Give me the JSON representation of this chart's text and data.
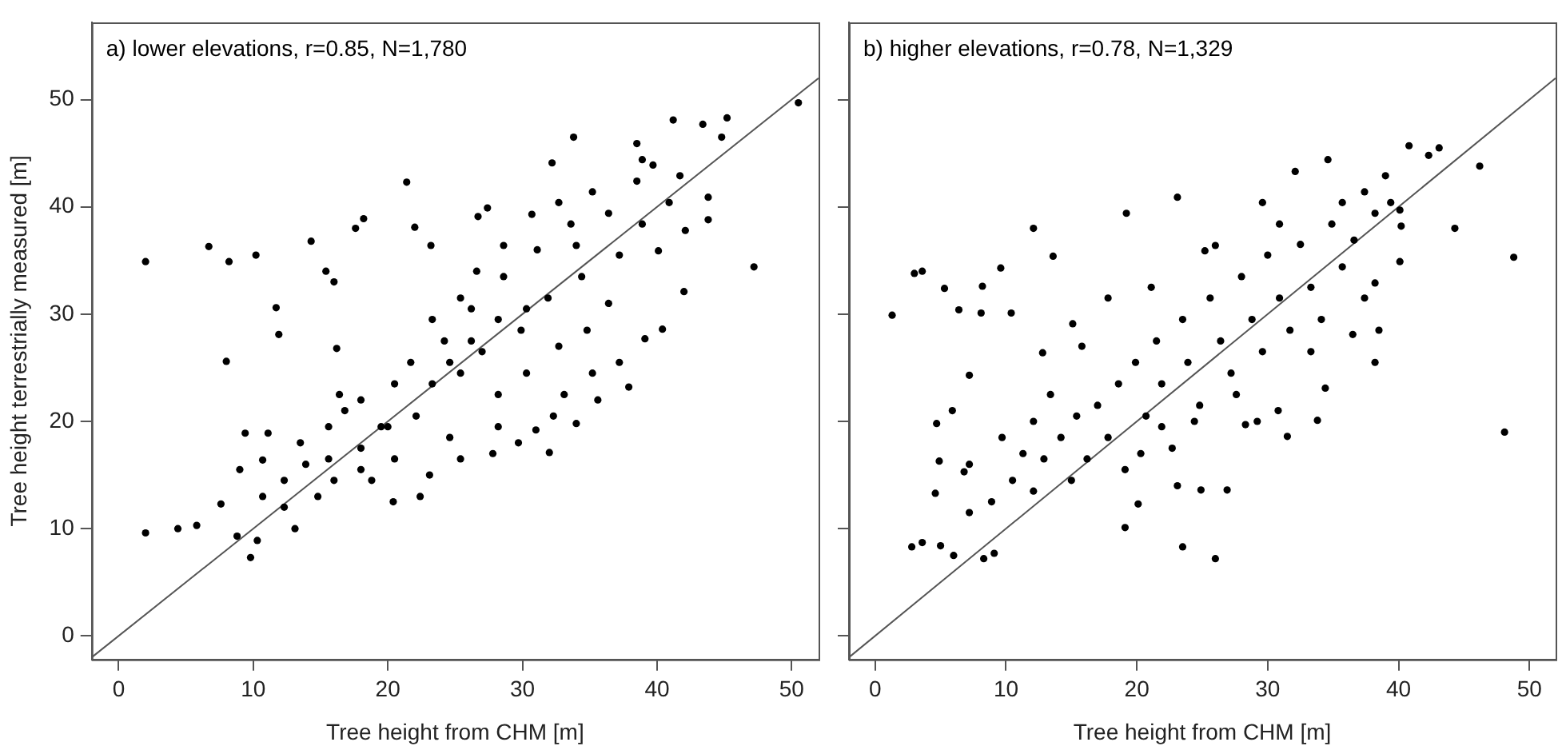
{
  "chart_data": [
    {
      "type": "scatter",
      "annotations": [
        "a) lower elevations, r=0.85, N=1,780"
      ],
      "xlabel": "Tree height from CHM [m]",
      "ylabel": "Tree height terrestrially measured [m]",
      "xlim": [
        -2,
        52
      ],
      "ylim": [
        -2.2,
        57.2
      ],
      "xticks": [
        0,
        10,
        20,
        30,
        40,
        50
      ],
      "yticks": [
        0,
        10,
        20,
        30,
        40,
        50
      ],
      "series": [
        {
          "type": "scatter",
          "marker": "circle",
          "color": "#000000",
          "x": [
            2.0,
            2.0,
            4.4,
            5.8,
            6.7,
            8.2,
            8.0,
            10.2,
            11.7,
            11.9,
            14.3,
            15.4,
            16.0,
            16.2,
            17.6,
            18.2,
            21.4,
            22.0,
            23.2,
            33.8,
            32.2,
            50.5,
            47.2,
            45.2,
            41.2,
            37.9,
            32.0,
            27.8,
            22.4,
            20.4,
            13.1,
            9.8,
            10.3,
            8.8,
            7.6,
            34.0,
            42.0,
            40.4,
            39.1,
            43.8,
            43.8,
            44.8,
            43.4,
            42.1,
            30.7,
            27.4,
            26.7,
            29.7,
            31.0,
            9.4,
            10.7,
            11.1,
            12.3,
            13.9,
            15.6,
            16.8,
            18.0,
            18.8,
            19.5,
            20.5,
            21.7,
            22.1,
            23.3,
            24.2,
            24.6,
            25.4,
            26.2,
            27.0,
            28.2,
            28.6,
            29.9,
            30.3,
            31.1,
            31.9,
            32.7,
            33.6,
            34.4,
            34.8,
            35.2,
            36.4,
            37.2,
            36.4,
            38.5,
            38.9,
            39.7,
            40.1,
            40.9,
            41.7,
            37.2,
            35.6,
            33.1,
            32.3,
            28.2,
            25.4,
            23.1,
            20.5,
            18.0,
            16.4,
            15.6,
            13.5,
            12.3,
            10.7,
            9.0,
            14.8,
            16.0,
            23.3,
            25.4,
            26.6,
            28.6,
            32.7,
            35.2,
            38.5,
            38.9,
            20.0,
            18.0,
            30.3,
            28.2,
            26.2,
            24.6,
            34.0
          ],
          "values": [
            34.9,
            9.6,
            10.0,
            10.3,
            36.3,
            34.9,
            25.6,
            35.5,
            30.6,
            28.1,
            36.8,
            34.0,
            33.0,
            26.8,
            38.0,
            38.9,
            42.3,
            38.1,
            36.4,
            46.5,
            44.1,
            49.7,
            34.4,
            48.3,
            48.1,
            23.2,
            17.1,
            17.0,
            13.0,
            12.5,
            10.0,
            7.3,
            8.9,
            9.3,
            12.3,
            19.8,
            32.1,
            28.6,
            27.7,
            38.8,
            40.9,
            46.5,
            47.7,
            37.8,
            39.3,
            39.9,
            39.1,
            18.0,
            19.2,
            18.9,
            16.4,
            18.9,
            14.5,
            16.0,
            19.5,
            21.0,
            17.5,
            14.5,
            19.5,
            23.5,
            25.5,
            20.5,
            23.5,
            27.5,
            18.5,
            24.5,
            30.5,
            26.5,
            22.5,
            33.5,
            28.5,
            24.5,
            36.0,
            31.5,
            27.0,
            38.4,
            33.5,
            28.5,
            24.5,
            39.4,
            35.5,
            31.0,
            42.4,
            38.4,
            43.9,
            35.9,
            40.4,
            42.9,
            25.5,
            22.0,
            22.5,
            20.5,
            19.5,
            16.5,
            15.0,
            16.5,
            22.0,
            22.5,
            16.5,
            18.0,
            12.0,
            13.0,
            15.5,
            13.0,
            14.5,
            29.5,
            31.5,
            34.0,
            36.4,
            40.4,
            41.4,
            45.9,
            44.4,
            19.5,
            15.5,
            30.5,
            29.5,
            27.5,
            25.5,
            36.4
          ]
        },
        {
          "type": "line",
          "color": "#555555",
          "line_style": "solid",
          "x": [
            -2,
            52
          ],
          "values": [
            -2,
            52
          ]
        }
      ]
    },
    {
      "type": "scatter",
      "annotations": [
        "b) higher elevations, r=0.78, N=1,329"
      ],
      "xlabel": "Tree height from CHM [m]",
      "xlim": [
        -2,
        52
      ],
      "ylim": [
        -2.2,
        57.2
      ],
      "xticks": [
        0,
        10,
        20,
        30,
        40,
        50
      ],
      "yticks": [
        0,
        10,
        20,
        30,
        40,
        50
      ],
      "tick_labels": "x",
      "series": [
        {
          "type": "scatter",
          "marker": "circle",
          "color": "#000000",
          "x": [
            1.3,
            3.0,
            3.6,
            5.3,
            6.4,
            8.1,
            8.2,
            9.6,
            10.4,
            12.1,
            13.6,
            19.2,
            23.1,
            48.1,
            48.8,
            46.2,
            44.3,
            43.1,
            40.8,
            42.3,
            34.6,
            32.1,
            26.0,
            23.5,
            19.1,
            20.1,
            2.8,
            3.6,
            5.0,
            6.0,
            8.3,
            9.1,
            4.6,
            4.9,
            4.7,
            5.9,
            7.2,
            6.8,
            12.8,
            15.1,
            33.8,
            31.5,
            26.9,
            24.9,
            23.1,
            38.2,
            38.5,
            36.5,
            40.1,
            40.2,
            40.1,
            34.4,
            30.8,
            29.2,
            28.3,
            7.2,
            8.9,
            10.5,
            11.3,
            12.1,
            12.9,
            14.2,
            15.0,
            15.4,
            16.2,
            17.0,
            17.8,
            18.6,
            19.1,
            19.9,
            20.7,
            21.5,
            21.9,
            22.7,
            23.5,
            23.9,
            24.8,
            25.6,
            26.4,
            27.2,
            28.0,
            28.8,
            29.6,
            30.0,
            30.9,
            31.7,
            32.5,
            33.3,
            34.1,
            34.9,
            35.7,
            36.6,
            37.4,
            38.2,
            39.0,
            39.4,
            38.2,
            37.4,
            26.0,
            25.2,
            21.1,
            17.8,
            15.8,
            13.4,
            12.1,
            9.7,
            7.2,
            20.3,
            21.9,
            24.4,
            27.6,
            33.3,
            30.9,
            29.6,
            35.7
          ],
          "values": [
            29.9,
            33.8,
            34.0,
            32.4,
            30.4,
            30.1,
            32.6,
            34.3,
            30.1,
            38.0,
            35.4,
            39.4,
            40.9,
            19.0,
            35.3,
            43.8,
            38.0,
            45.5,
            45.7,
            44.8,
            44.4,
            43.3,
            7.2,
            8.3,
            10.1,
            12.3,
            8.3,
            8.7,
            8.4,
            7.5,
            7.2,
            7.7,
            13.3,
            16.3,
            19.8,
            21.0,
            24.3,
            15.3,
            26.4,
            29.1,
            20.1,
            18.6,
            13.6,
            13.6,
            14.0,
            25.5,
            28.5,
            28.1,
            34.9,
            38.2,
            39.7,
            23.1,
            21.0,
            20.0,
            19.7,
            11.5,
            12.5,
            14.5,
            17.0,
            13.5,
            16.5,
            18.5,
            14.5,
            20.5,
            16.5,
            21.5,
            18.5,
            23.5,
            15.5,
            25.5,
            20.5,
            27.5,
            23.5,
            17.5,
            29.5,
            25.5,
            21.5,
            31.5,
            27.5,
            24.5,
            33.5,
            29.5,
            26.5,
            35.5,
            31.5,
            28.5,
            36.5,
            32.5,
            29.5,
            38.4,
            34.4,
            36.9,
            41.4,
            39.4,
            42.9,
            40.4,
            32.9,
            31.5,
            36.4,
            35.9,
            32.5,
            31.5,
            27.0,
            22.5,
            20.0,
            18.5,
            16.0,
            17.0,
            19.5,
            20.0,
            22.5,
            26.5,
            38.4,
            40.4,
            40.4
          ]
        },
        {
          "type": "line",
          "color": "#555555",
          "line_style": "solid",
          "x": [
            -2,
            52
          ],
          "values": [
            -2,
            52
          ]
        }
      ]
    }
  ]
}
